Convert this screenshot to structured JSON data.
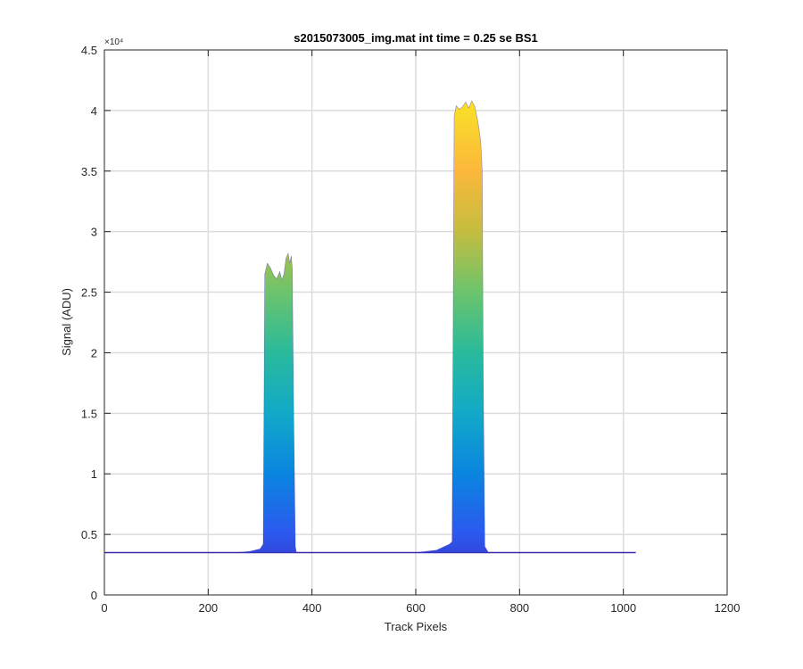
{
  "chart_data": {
    "type": "area",
    "title": "s2015073005_img.mat int time = 0.25 se   BS1",
    "xlabel": "Track Pixels",
    "ylabel": "Signal (ADU)",
    "y_exponent_label": "×10⁴",
    "xlim": [
      0,
      1200
    ],
    "ylim": [
      0,
      45000
    ],
    "xticks": [
      0,
      200,
      400,
      600,
      800,
      1000,
      1200
    ],
    "xtick_labels": [
      "0",
      "200",
      "400",
      "600",
      "800",
      "1000",
      "1200"
    ],
    "yticks": [
      0,
      5000,
      10000,
      15000,
      20000,
      25000,
      30000,
      35000,
      40000,
      45000
    ],
    "ytick_labels": [
      "0",
      "0.5",
      "1",
      "1.5",
      "2",
      "2.5",
      "3",
      "3.5",
      "4",
      "4.5"
    ],
    "grid": true,
    "colormap": [
      "#3e26a8",
      "#2c58f0",
      "#0a85df",
      "#12a9c8",
      "#29ba9c",
      "#6cc46c",
      "#c4bd3f",
      "#fcb83b",
      "#f9dc2a",
      "#f9fb0e"
    ],
    "x_range": [
      1,
      1024
    ],
    "baseline": 3500,
    "peaks": [
      {
        "x": [
          255,
          280,
          300,
          306,
          309,
          314,
          320,
          326,
          332,
          338,
          342,
          346,
          350,
          354,
          357,
          360,
          362,
          365,
          368,
          370
        ],
        "y": [
          3500,
          3600,
          3800,
          4200,
          26500,
          27400,
          27000,
          26400,
          26100,
          26700,
          26000,
          26500,
          27800,
          28200,
          27400,
          28000,
          27000,
          14000,
          4000,
          3500
        ]
      },
      {
        "x": [
          600,
          640,
          655,
          665,
          670,
          674,
          678,
          684,
          690,
          696,
          702,
          708,
          714,
          720,
          725,
          728,
          730,
          733,
          740
        ],
        "y": [
          3500,
          3700,
          4000,
          4200,
          4400,
          39500,
          40400,
          40100,
          40300,
          40700,
          40200,
          40800,
          40300,
          39000,
          37500,
          35000,
          18000,
          4000,
          3500
        ]
      }
    ]
  }
}
